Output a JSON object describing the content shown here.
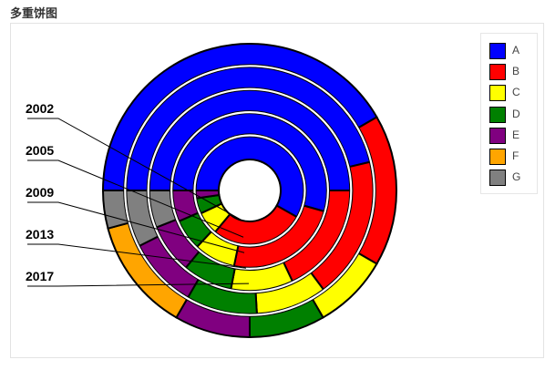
{
  "title": "多重饼图",
  "chart_data": {
    "type": "pie",
    "subtype": "multi-level-ring",
    "categories": [
      "A",
      "B",
      "C",
      "D",
      "E",
      "F",
      "G"
    ],
    "colors": {
      "A": "#0000ff",
      "B": "#ff0000",
      "C": "#ffff00",
      "D": "#008000",
      "E": "#800080",
      "F": "#ffa500",
      "G": "#808080"
    },
    "series": [
      {
        "name": "2002",
        "values": [
          50,
          24,
          6,
          4,
          2,
          0,
          0
        ]
      },
      {
        "name": "2005",
        "values": [
          50,
          22,
          8,
          6,
          6,
          0,
          0
        ]
      },
      {
        "name": "2009",
        "values": [
          50,
          18,
          10,
          8,
          8,
          0,
          6
        ]
      },
      {
        "name": "2013",
        "values": [
          50,
          20,
          10,
          10,
          10,
          0,
          8
        ]
      },
      {
        "name": "2017",
        "values": [
          50,
          20,
          10,
          10,
          10,
          15,
          5
        ]
      }
    ],
    "legend_position": "top-right"
  }
}
